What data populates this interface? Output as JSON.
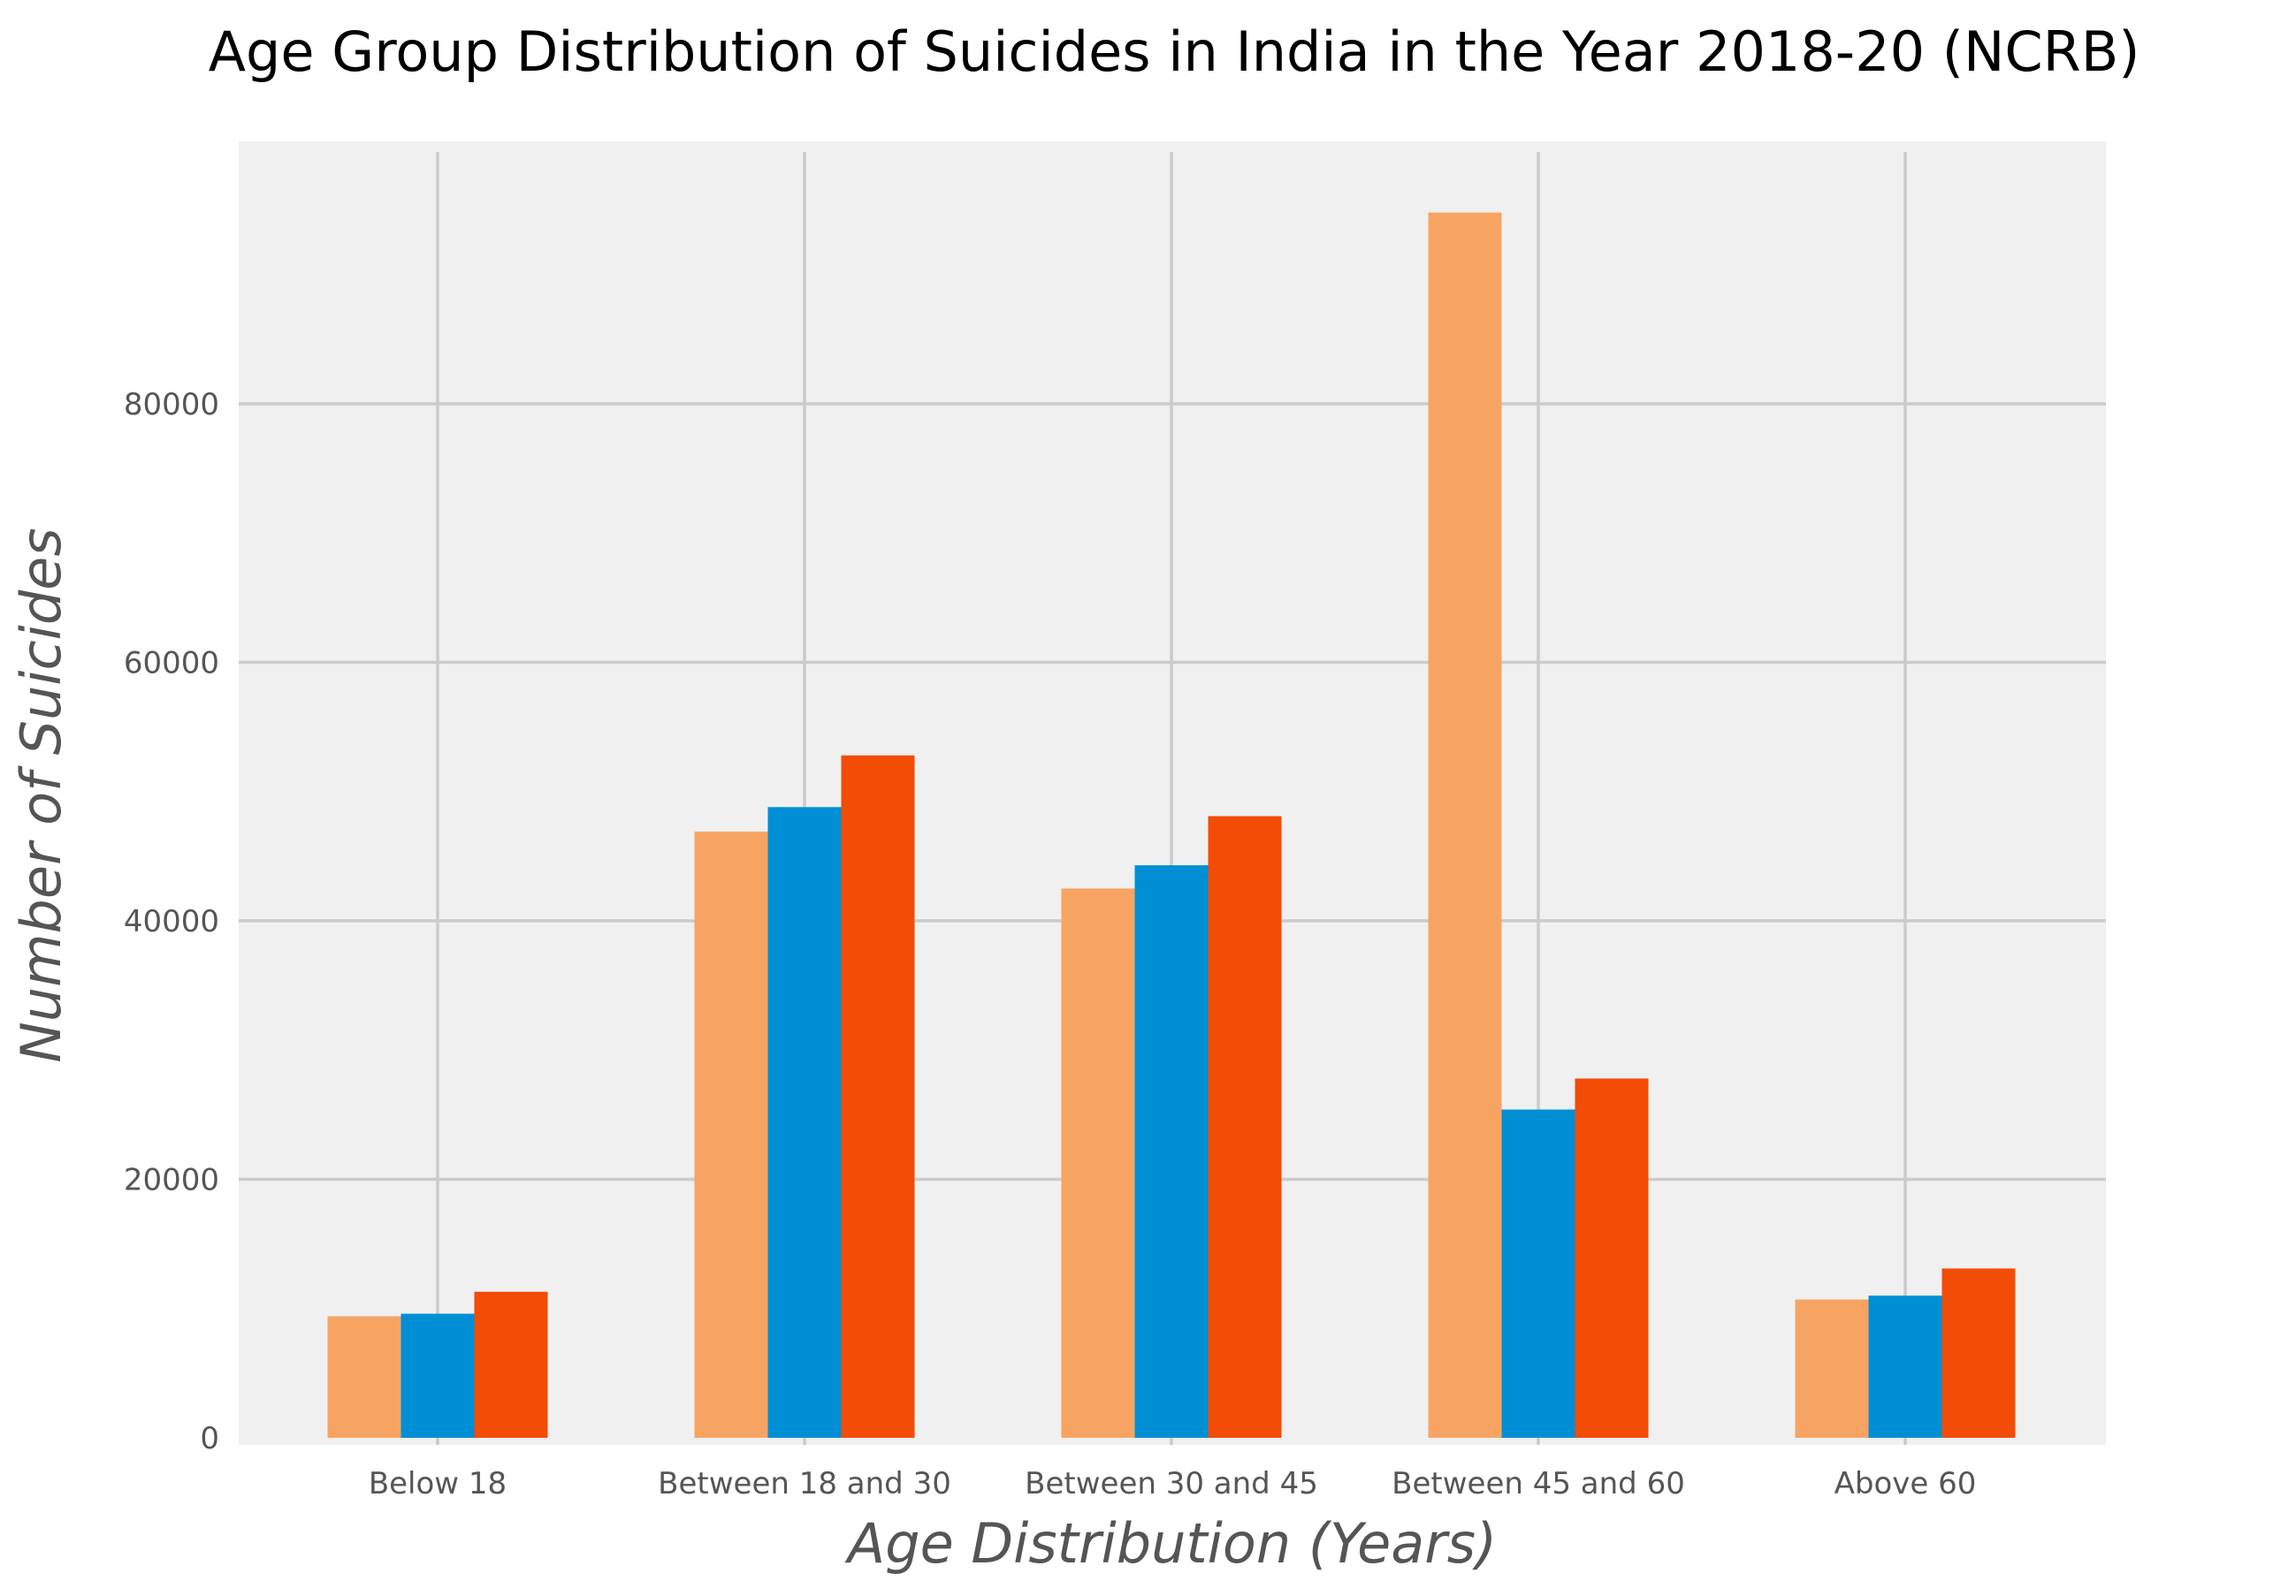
{
  "chart_data": {
    "type": "bar",
    "title": "Age Group Distribution of Suicides in India in the Year 2018-20 (NCRB)",
    "xlabel": "Age Distribution (Years)",
    "ylabel": "Number of Suicides",
    "categories": [
      "Below 18",
      "Between 18 and 30",
      "Between 30 and 45",
      "Between 45 and 60",
      "Above 60"
    ],
    "series": [
      {
        "values": [
          9400,
          46900,
          42500,
          94800,
          10700
        ],
        "color": "#f7a463"
      },
      {
        "values": [
          9600,
          48800,
          44300,
          25400,
          11000
        ],
        "color": "#008fd5"
      },
      {
        "values": [
          11300,
          52800,
          48100,
          27800,
          13100
        ],
        "color": "#f24c07"
      }
    ],
    "yticks": [
      "0",
      "20000",
      "40000",
      "60000",
      "80000"
    ],
    "ylim": [
      0,
      100000
    ],
    "grid": true,
    "background": "#f0f0f0",
    "grid_color": "#cbcbcb"
  }
}
